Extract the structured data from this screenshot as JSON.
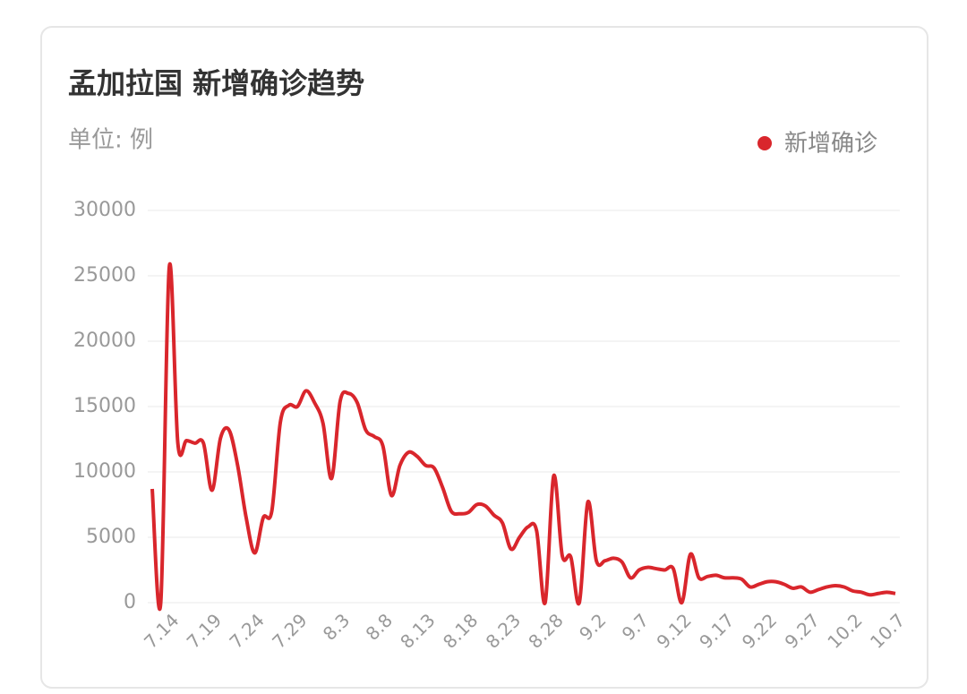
{
  "chart_data": {
    "type": "line",
    "title": "孟加拉国 新增确诊趋势",
    "subtitle": "单位: 例",
    "categories": [
      null,
      null,
      "7.14",
      null,
      null,
      null,
      null,
      "7.19",
      null,
      null,
      null,
      null,
      "7.24",
      null,
      null,
      null,
      null,
      "7.29",
      null,
      null,
      null,
      null,
      "8.3",
      null,
      null,
      null,
      null,
      "8.8",
      null,
      null,
      null,
      null,
      "8.13",
      null,
      null,
      null,
      null,
      "8.18",
      null,
      null,
      null,
      null,
      "8.23",
      null,
      null,
      null,
      null,
      "8.28",
      null,
      null,
      null,
      null,
      "9.2",
      null,
      null,
      null,
      null,
      "9.7",
      null,
      null,
      null,
      null,
      "9.12",
      null,
      null,
      null,
      null,
      "9.17",
      null,
      null,
      null,
      null,
      "9.22",
      null,
      null,
      null,
      null,
      "9.27",
      null,
      null,
      null,
      null,
      "10.2",
      null,
      null,
      null,
      null,
      "10.7"
    ],
    "series": [
      {
        "name": "新增确诊",
        "color": "#d9262c",
        "values": [
          8700,
          0,
          25700,
          12200,
          12400,
          12200,
          12200,
          8600,
          12600,
          13200,
          10500,
          6500,
          3800,
          6500,
          7000,
          13800,
          15100,
          15000,
          16200,
          15300,
          13700,
          9500,
          15400,
          16000,
          15300,
          13200,
          12700,
          12000,
          8200,
          10500,
          11500,
          11200,
          10500,
          10300,
          8800,
          7000,
          6800,
          6900,
          7500,
          7400,
          6700,
          6100,
          4100,
          5000,
          5800,
          5500,
          0,
          9700,
          3600,
          3500,
          0,
          7700,
          3200,
          3200,
          3400,
          3100,
          1900,
          2500,
          2700,
          2600,
          2500,
          2600,
          0,
          3700,
          1900,
          2000,
          2100,
          1900,
          1900,
          1800,
          1200,
          1400,
          1600,
          1600,
          1400,
          1100,
          1200,
          800,
          1000,
          1200,
          1300,
          1200,
          900,
          800,
          600,
          700,
          800,
          700
        ]
      }
    ],
    "ylim": [
      0,
      30000
    ],
    "yticks": [
      0,
      5000,
      10000,
      15000,
      20000,
      25000,
      30000
    ],
    "grid": true,
    "legend": "top-right"
  }
}
